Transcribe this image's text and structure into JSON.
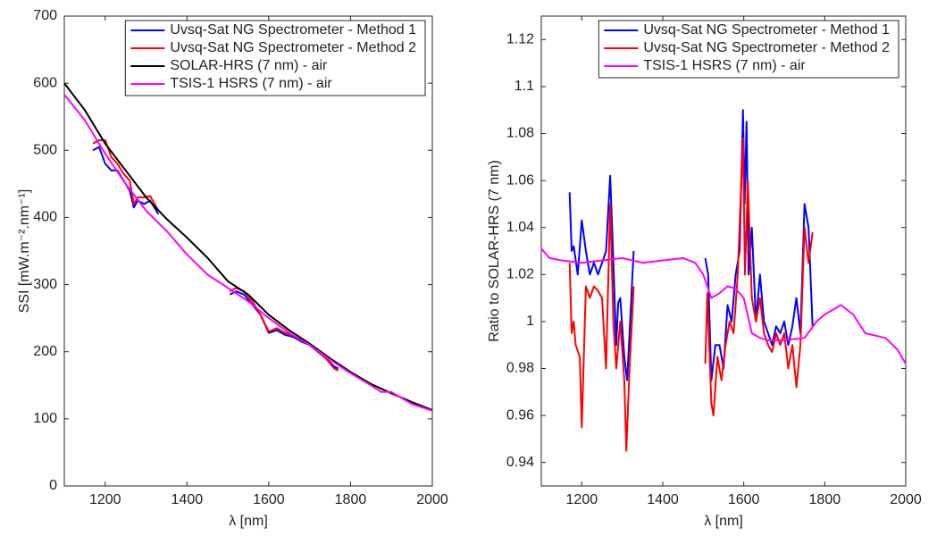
{
  "chart_data": [
    {
      "type": "line",
      "x_label": "λ [nm]",
      "y_label": "SSI [mW.m⁻².nm⁻¹]",
      "legend": "upper right",
      "xlim": [
        1100,
        2000
      ],
      "xticks": [
        1200,
        1400,
        1600,
        1800,
        2000
      ],
      "ylim": [
        0,
        700
      ],
      "yticks": [
        0,
        100,
        200,
        300,
        400,
        500,
        600,
        700
      ],
      "series": [
        {
          "name": "Uvsq-Sat NG Spectrometer - Method 1",
          "color": "#0000ff",
          "x": [
            1170,
            1185,
            1200,
            1215,
            1230,
            1245,
            1260,
            1270,
            1280,
            1295,
            1310,
            1330,
            null,
            1505,
            1520,
            1540,
            1560,
            1580,
            1600,
            1620,
            1640,
            1660,
            1680,
            1700,
            1720,
            1740,
            1760,
            1770
          ],
          "values": [
            500,
            505,
            480,
            470,
            470,
            455,
            440,
            415,
            425,
            420,
            425,
            405,
            null,
            285,
            290,
            285,
            270,
            255,
            228,
            232,
            225,
            222,
            215,
            210,
            200,
            190,
            178,
            175
          ]
        },
        {
          "name": "Uvsq-Sat NG Spectrometer - Method 2",
          "color": "#ff0000",
          "x": [
            1170,
            1185,
            1200,
            1215,
            1230,
            1245,
            1260,
            1270,
            1280,
            1295,
            1310,
            1330,
            null,
            1505,
            1520,
            1540,
            1560,
            1580,
            1600,
            1620,
            1640,
            1660,
            1680,
            1700,
            1720,
            1740,
            1760,
            1770
          ],
          "values": [
            510,
            515,
            515,
            490,
            480,
            465,
            455,
            420,
            430,
            430,
            432,
            410,
            null,
            290,
            295,
            290,
            275,
            255,
            230,
            235,
            228,
            224,
            217,
            210,
            201,
            190,
            175,
            172
          ]
        },
        {
          "name": "SOLAR-HRS (7 nm) - air",
          "color": "#000000",
          "x": [
            1100,
            1150,
            1200,
            1250,
            1300,
            1350,
            1400,
            1450,
            1500,
            1550,
            1600,
            1650,
            1700,
            1750,
            1800,
            1850,
            1900,
            1950,
            2000
          ],
          "values": [
            600,
            560,
            510,
            470,
            430,
            398,
            370,
            340,
            305,
            285,
            255,
            232,
            212,
            190,
            170,
            152,
            138,
            125,
            113
          ]
        },
        {
          "name": "TSIS-1 HSRS (7 nm) - air",
          "color": "#ff00ff",
          "x": [
            1100,
            1150,
            1200,
            1250,
            1300,
            1350,
            1400,
            1450,
            1500,
            1550,
            1600,
            1650,
            1700,
            1750,
            1800,
            1850,
            1875,
            1900,
            1950,
            2000
          ],
          "values": [
            583,
            545,
            495,
            450,
            410,
            380,
            345,
            315,
            295,
            275,
            250,
            228,
            210,
            188,
            168,
            150,
            140,
            140,
            122,
            112
          ]
        }
      ]
    },
    {
      "type": "line",
      "x_label": "λ [nm]",
      "y_label": "Ratio to SOLAR-HRS (7 nm)",
      "legend": "upper right",
      "xlim": [
        1100,
        2000
      ],
      "xticks": [
        1200,
        1400,
        1600,
        1800,
        2000
      ],
      "ylim": [
        0.93,
        1.13
      ],
      "yticks": [
        0.94,
        0.96,
        0.98,
        1,
        1.02,
        1.04,
        1.06,
        1.08,
        1.1,
        1.12
      ],
      "series": [
        {
          "name": "Uvsq-Sat NG Spectrometer - Method 1",
          "color": "#0000ff",
          "x": [
            1170,
            1175,
            1180,
            1190,
            1200,
            1210,
            1220,
            1230,
            1240,
            1250,
            1260,
            1270,
            1275,
            1285,
            1290,
            1295,
            1305,
            1312,
            1318,
            1328,
            null,
            1505,
            1512,
            1520,
            1530,
            1540,
            1550,
            1560,
            1570,
            1580,
            1590,
            1598,
            1602,
            1607,
            1612,
            1620,
            1630,
            1640,
            1650,
            1660,
            1670,
            1680,
            1690,
            1700,
            1710,
            1720,
            1730,
            1740,
            1750,
            1760,
            1770
          ],
          "values": [
            1.055,
            1.03,
            1.032,
            1.02,
            1.043,
            1.03,
            1.02,
            1.025,
            1.02,
            1.025,
            1.03,
            1.062,
            1.04,
            0.99,
            1.008,
            1.01,
            0.985,
            0.975,
            0.995,
            1.03,
            null,
            1.027,
            1.02,
            0.975,
            0.99,
            0.99,
            0.98,
            1.007,
            1.0,
            1.02,
            1.03,
            1.09,
            1.05,
            1.085,
            1.02,
            1.04,
            1.0,
            1.02,
            1.0,
            0.995,
            0.99,
            0.998,
            0.995,
            1.0,
            0.99,
            0.998,
            1.01,
            0.995,
            1.05,
            1.04,
            0.998
          ]
        },
        {
          "name": "Uvsq-Sat NG Spectrometer - Method 2",
          "color": "#ff0000",
          "x": [
            1170,
            1175,
            1180,
            1185,
            1195,
            1200,
            1210,
            1220,
            1230,
            1240,
            1250,
            1260,
            1270,
            1278,
            1285,
            1295,
            1305,
            1310,
            1318,
            1328,
            null,
            1505,
            1510,
            1520,
            1525,
            1535,
            1545,
            1555,
            1565,
            1575,
            1585,
            1598,
            1603,
            1610,
            1620,
            1630,
            1640,
            1650,
            1660,
            1670,
            1680,
            1690,
            1700,
            1710,
            1720,
            1730,
            1740,
            1750,
            1760,
            1770
          ],
          "values": [
            1.025,
            0.995,
            1.0,
            0.99,
            0.985,
            0.955,
            1.015,
            1.01,
            1.015,
            1.013,
            1.01,
            0.98,
            1.05,
            1.0,
            0.98,
            1.0,
            0.975,
            0.945,
            0.98,
            1.015,
            null,
            0.982,
            1.012,
            0.965,
            0.96,
            0.985,
            0.975,
            0.99,
            1.0,
            0.995,
            1.02,
            1.078,
            1.02,
            1.06,
            1.01,
            1.0,
            1.01,
            0.995,
            0.99,
            0.987,
            0.995,
            0.99,
            0.995,
            0.98,
            0.99,
            0.972,
            0.99,
            1.04,
            1.025,
            1.038
          ]
        },
        {
          "name": "TSIS-1 HSRS (7 nm) - air",
          "color": "#ff00ff",
          "x": [
            1100,
            1120,
            1150,
            1200,
            1250,
            1300,
            1350,
            1400,
            1450,
            1480,
            1500,
            1520,
            1540,
            1560,
            1580,
            1600,
            1620,
            1640,
            1660,
            1700,
            1750,
            1780,
            1800,
            1840,
            1870,
            1900,
            1950,
            1980,
            2000
          ],
          "values": [
            1.031,
            1.027,
            1.026,
            1.025,
            1.026,
            1.027,
            1.025,
            1.026,
            1.027,
            1.025,
            1.02,
            1.01,
            1.012,
            1.015,
            1.014,
            1.01,
            0.995,
            0.993,
            0.992,
            0.992,
            0.993,
            1.0,
            1.003,
            1.007,
            1.003,
            0.995,
            0.993,
            0.988,
            0.982
          ]
        }
      ]
    }
  ]
}
